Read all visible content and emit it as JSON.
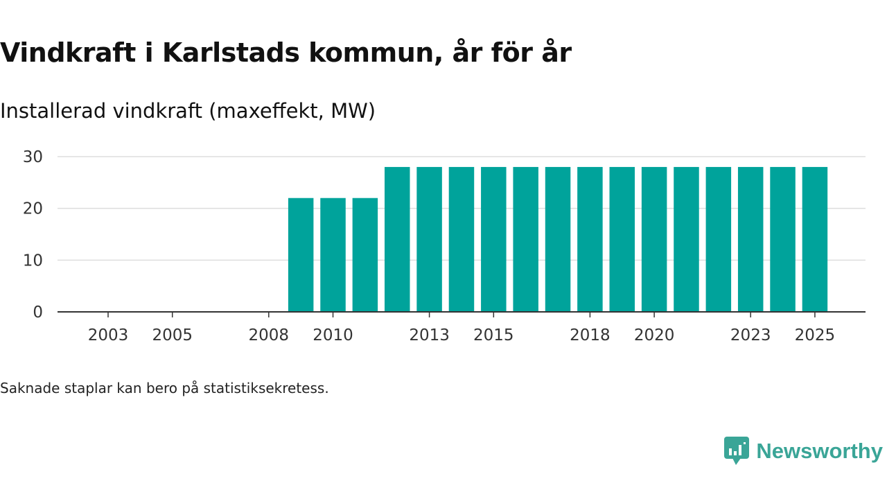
{
  "title": "Vindkraft i Karlstads kommun, år för år",
  "subtitle": "Installerad vindkraft (maxeffekt, MW)",
  "footnote": "Saknade staplar kan bero på statistiksekretess.",
  "brand": {
    "name": "Newsworthy",
    "icon": "newsworthy-chart-bubble-icon",
    "color": "#3aa597"
  },
  "chart_data": {
    "type": "bar",
    "title": "Vindkraft i Karlstads kommun, år för år",
    "subtitle": "Installerad vindkraft (maxeffekt, MW)",
    "xlabel": "",
    "ylabel": "Installerad vindkraft (maxeffekt, MW)",
    "categories": [
      2002,
      2003,
      2004,
      2005,
      2006,
      2007,
      2008,
      2009,
      2010,
      2011,
      2012,
      2013,
      2014,
      2015,
      2016,
      2017,
      2018,
      2019,
      2020,
      2021,
      2022,
      2023,
      2024,
      2025
    ],
    "values": [
      null,
      null,
      null,
      null,
      null,
      null,
      null,
      22,
      22,
      22,
      28,
      28,
      28,
      28,
      28,
      28,
      28,
      28,
      28,
      28,
      28,
      28,
      28,
      28
    ],
    "x_ticks": [
      "2003",
      "2005",
      "2008",
      "2010",
      "2013",
      "2015",
      "2018",
      "2020",
      "2023",
      "2025"
    ],
    "y_ticks": [
      "0",
      "10",
      "20",
      "30"
    ],
    "ylim": [
      0,
      30
    ],
    "grid": true,
    "legend": "none",
    "bar_color": "#00a39b",
    "grid_color": "#dddddd",
    "axis_color": "#333333"
  }
}
